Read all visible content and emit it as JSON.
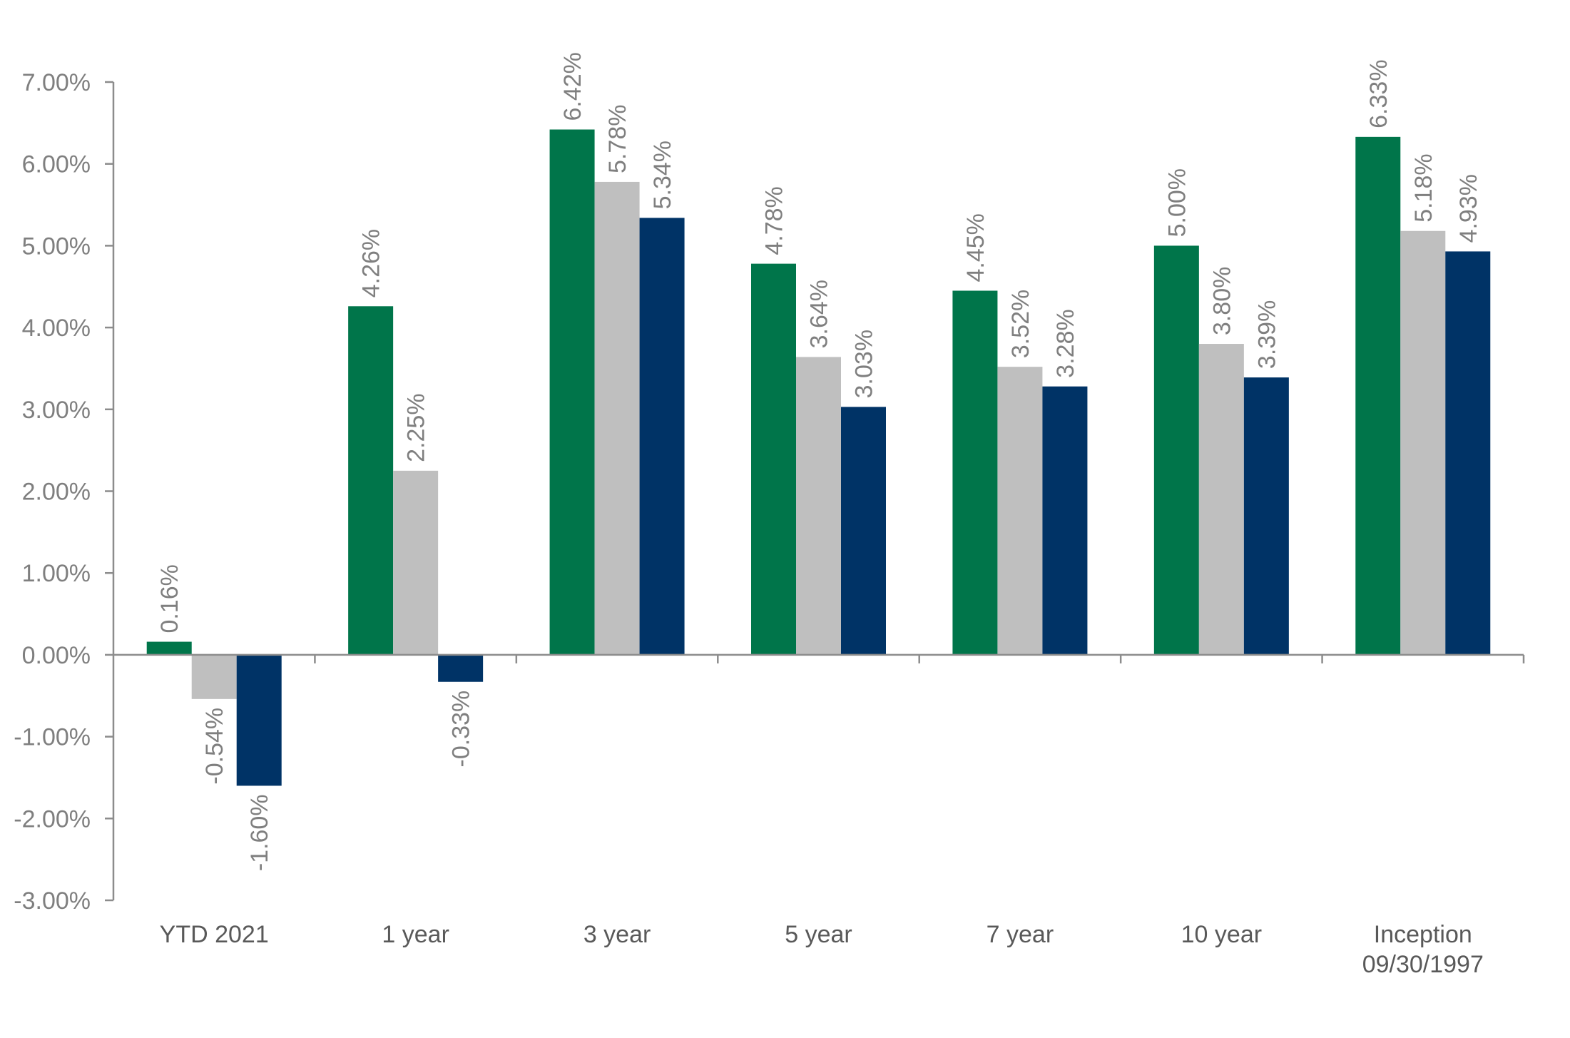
{
  "chart_data": {
    "type": "bar",
    "categories": [
      "YTD 2021",
      "1 year",
      "3 year",
      "5 year",
      "7 year",
      "10 year",
      "Inception\n09/30/1997"
    ],
    "series": [
      {
        "color": "#00754a",
        "values": [
          0.16,
          4.26,
          6.42,
          4.78,
          4.45,
          5.0,
          6.33
        ],
        "labels": [
          "0.16%",
          "4.26%",
          "6.42%",
          "4.78%",
          "4.45%",
          "5.00%",
          "6.33%"
        ]
      },
      {
        "color": "#bfbfbf",
        "values": [
          -0.54,
          2.25,
          5.78,
          3.64,
          3.52,
          3.8,
          5.18
        ],
        "labels": [
          "-0.54%",
          "2.25%",
          "5.78%",
          "3.64%",
          "3.52%",
          "3.80%",
          "5.18%"
        ]
      },
      {
        "color": "#003366",
        "values": [
          -1.6,
          -0.33,
          5.34,
          3.03,
          3.28,
          3.39,
          4.93
        ],
        "labels": [
          "-1.60%",
          "-0.33%",
          "5.34%",
          "3.03%",
          "3.28%",
          "3.39%",
          "4.93%"
        ]
      }
    ],
    "ylim": [
      -3,
      7
    ],
    "yticks": [
      7,
      6,
      5,
      4,
      3,
      2,
      1,
      0,
      -1,
      -2,
      -3
    ],
    "ytick_labels": [
      "7.00%",
      "6.00%",
      "5.00%",
      "4.00%",
      "3.00%",
      "2.00%",
      "1.00%",
      "0.00%",
      "-1.00%",
      "-2.00%",
      "-3.00%"
    ],
    "grid": false,
    "legend": "none",
    "data_label_rotation": "vertical",
    "title": "",
    "xlabel": "",
    "ylabel": ""
  }
}
